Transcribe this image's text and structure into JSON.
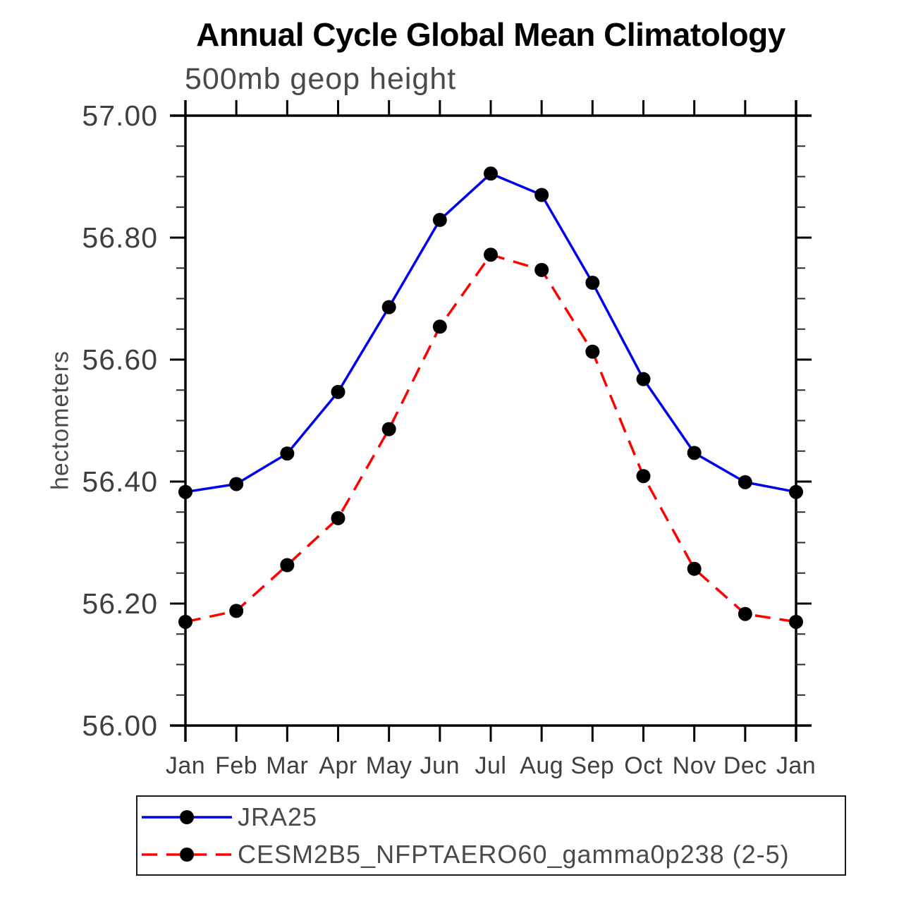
{
  "title": "Annual Cycle Global Mean Climatology",
  "subtitle": "500mb geop height",
  "y_axis_label": "hectometers",
  "colors": {
    "series1": "#0000ee",
    "series2": "#ff0000",
    "marker": "#000000",
    "axis": "#000000",
    "label_text": "#3f3f3f",
    "title_text": "#000000"
  },
  "legend": {
    "items": [
      {
        "label": "JRA25",
        "line_style": "solid",
        "color": "#0000ee",
        "marker": "black-dot"
      },
      {
        "label": "CESM2B5_NFPTAERO60_gamma0p238 (2-5)",
        "line_style": "dashed",
        "color": "#ff0000",
        "marker": "black-dot"
      }
    ]
  },
  "chart_data": {
    "type": "line",
    "title": "Annual Cycle Global Mean Climatology",
    "subtitle": "500mb geop height",
    "xlabel": "",
    "ylabel": "hectometers",
    "categories": [
      "Jan",
      "Feb",
      "Mar",
      "Apr",
      "May",
      "Jun",
      "Jul",
      "Aug",
      "Sep",
      "Oct",
      "Nov",
      "Dec",
      "Jan"
    ],
    "ylim": [
      56.0,
      57.0
    ],
    "ytick_major_step": 0.2,
    "ytick_minor_step": 0.05,
    "ytick_labels": [
      "57.00",
      "56.80",
      "56.60",
      "56.40",
      "56.20",
      "56.00"
    ],
    "grid": false,
    "legend_position": "bottom",
    "series": [
      {
        "name": "JRA25",
        "color": "#0000ee",
        "style": "solid",
        "marker": "black-dot",
        "values": [
          56.383,
          56.396,
          56.446,
          56.547,
          56.686,
          56.829,
          56.905,
          56.87,
          56.726,
          56.568,
          56.447,
          56.399,
          56.383
        ]
      },
      {
        "name": "CESM2B5_NFPTAERO60_gamma0p238 (2-5)",
        "color": "#ff0000",
        "style": "dashed",
        "marker": "black-dot",
        "values": [
          56.17,
          56.188,
          56.263,
          56.34,
          56.486,
          56.654,
          56.772,
          56.747,
          56.613,
          56.409,
          56.257,
          56.183,
          56.17
        ]
      }
    ]
  }
}
